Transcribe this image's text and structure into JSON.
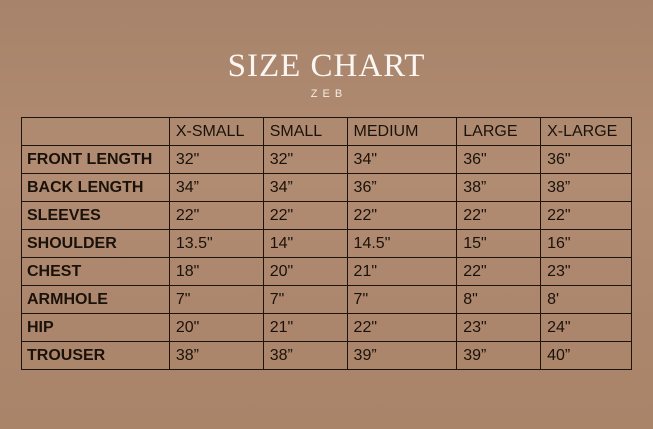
{
  "title": "SIZE CHART",
  "brand": "ZEB",
  "table": {
    "headers": [
      "",
      "X-SMALL",
      "SMALL",
      "MEDIUM",
      "LARGE",
      "X-LARGE"
    ],
    "rows": [
      [
        "FRONT LENGTH",
        "32\"",
        "32\"",
        "34\"",
        "36\"",
        "36\""
      ],
      [
        "BACK LENGTH",
        "34”",
        "34”",
        "36”",
        "38”",
        "38”"
      ],
      [
        "SLEEVES",
        "22\"",
        "22\"",
        "22\"",
        "22\"",
        "22\""
      ],
      [
        "SHOULDER",
        "13.5\"",
        "14\"",
        "14.5\"",
        "15\"",
        "16\""
      ],
      [
        "CHEST",
        "18\"",
        "20\"",
        "21\"",
        "22\"",
        "23\""
      ],
      [
        "ARMHOLE",
        "7\"",
        "7\"",
        "7\"",
        "8\"",
        "8'"
      ],
      [
        "HIP",
        "20\"",
        "21\"",
        "22\"",
        "23\"",
        "24\""
      ],
      [
        "TROUSER",
        "38”",
        "38”",
        "39”",
        "39”",
        "40”"
      ]
    ]
  }
}
